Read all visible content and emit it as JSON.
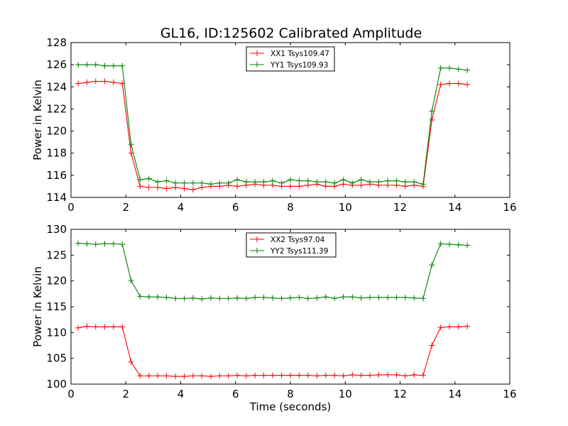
{
  "figure_title": "GL16, ID:125602 Calibrated Amplitude",
  "chart_data": [
    {
      "type": "line",
      "title": "GL16, ID:125602 Calibrated Amplitude",
      "xlabel": "",
      "ylabel": "Power in Kelvin",
      "xlim": [
        0,
        16
      ],
      "ylim": [
        114,
        128
      ],
      "xticks": [
        0,
        2,
        4,
        6,
        8,
        10,
        12,
        14,
        16
      ],
      "yticks": [
        114,
        116,
        118,
        120,
        122,
        124,
        126,
        128
      ],
      "grid": false,
      "legend_position": "top-center",
      "x": [
        0.26,
        0.58,
        0.9,
        1.23,
        1.55,
        1.87,
        2.19,
        2.52,
        2.84,
        3.16,
        3.48,
        3.81,
        4.13,
        4.45,
        4.77,
        5.1,
        5.42,
        5.74,
        6.06,
        6.39,
        6.71,
        7.03,
        7.35,
        7.68,
        8.0,
        8.32,
        8.64,
        8.97,
        9.29,
        9.61,
        9.93,
        10.26,
        10.58,
        10.9,
        11.22,
        11.55,
        11.87,
        12.19,
        12.51,
        12.84,
        13.16,
        13.48,
        13.8,
        14.13,
        14.45
      ],
      "series": [
        {
          "name": "XX1 Tsys109.47",
          "color": "#ff0000",
          "values": [
            124.3,
            124.4,
            124.5,
            124.5,
            124.4,
            124.3,
            118.0,
            115.0,
            114.9,
            114.9,
            114.8,
            114.9,
            114.8,
            114.7,
            114.9,
            115.0,
            115.0,
            115.1,
            115.0,
            115.1,
            115.2,
            115.1,
            115.1,
            115.0,
            115.0,
            115.0,
            115.1,
            115.2,
            115.0,
            115.0,
            115.2,
            115.1,
            115.1,
            115.2,
            115.1,
            115.1,
            115.1,
            115.0,
            115.1,
            115.0,
            121.0,
            124.2,
            124.3,
            124.3,
            124.2
          ]
        },
        {
          "name": "YY1 Tsys109.93",
          "color": "#008000",
          "values": [
            126.0,
            126.0,
            126.0,
            125.9,
            125.9,
            125.9,
            118.8,
            115.6,
            115.7,
            115.4,
            115.5,
            115.3,
            115.3,
            115.3,
            115.3,
            115.2,
            115.3,
            115.3,
            115.6,
            115.4,
            115.4,
            115.4,
            115.5,
            115.3,
            115.6,
            115.5,
            115.5,
            115.4,
            115.4,
            115.3,
            115.6,
            115.3,
            115.6,
            115.4,
            115.4,
            115.5,
            115.5,
            115.4,
            115.4,
            115.2,
            121.8,
            125.7,
            125.7,
            125.6,
            125.5
          ]
        }
      ]
    },
    {
      "type": "line",
      "title": "",
      "xlabel": "Time (seconds)",
      "ylabel": "Power in Kelvin",
      "xlim": [
        0,
        16
      ],
      "ylim": [
        100,
        130
      ],
      "xticks": [
        0,
        2,
        4,
        6,
        8,
        10,
        12,
        14,
        16
      ],
      "yticks": [
        100,
        105,
        110,
        115,
        120,
        125,
        130
      ],
      "grid": false,
      "legend_position": "top-center",
      "x": [
        0.26,
        0.58,
        0.9,
        1.23,
        1.55,
        1.87,
        2.19,
        2.52,
        2.84,
        3.16,
        3.48,
        3.81,
        4.13,
        4.45,
        4.77,
        5.1,
        5.42,
        5.74,
        6.06,
        6.39,
        6.71,
        7.03,
        7.35,
        7.68,
        8.0,
        8.32,
        8.64,
        8.97,
        9.29,
        9.61,
        9.93,
        10.26,
        10.58,
        10.9,
        11.22,
        11.55,
        11.87,
        12.19,
        12.51,
        12.84,
        13.16,
        13.48,
        13.8,
        14.13,
        14.45
      ],
      "series": [
        {
          "name": "XX2 Tsys97.04",
          "color": "#ff0000",
          "values": [
            110.9,
            111.2,
            111.1,
            111.1,
            111.1,
            111.1,
            104.3,
            101.6,
            101.6,
            101.6,
            101.6,
            101.5,
            101.5,
            101.6,
            101.6,
            101.5,
            101.6,
            101.6,
            101.7,
            101.6,
            101.7,
            101.7,
            101.7,
            101.7,
            101.7,
            101.7,
            101.7,
            101.6,
            101.7,
            101.7,
            101.6,
            101.8,
            101.7,
            101.7,
            101.8,
            101.8,
            101.8,
            101.6,
            101.8,
            101.7,
            107.5,
            111.0,
            111.1,
            111.1,
            111.2
          ]
        },
        {
          "name": "YY2 Tsys111.39",
          "color": "#008000",
          "values": [
            127.3,
            127.2,
            127.1,
            127.2,
            127.2,
            127.1,
            120.1,
            117.0,
            116.9,
            116.9,
            116.8,
            116.6,
            116.6,
            116.7,
            116.5,
            116.7,
            116.6,
            116.6,
            116.7,
            116.6,
            116.8,
            116.8,
            116.7,
            116.6,
            116.7,
            116.8,
            116.6,
            116.7,
            116.9,
            116.6,
            116.9,
            116.9,
            116.7,
            116.8,
            116.8,
            116.8,
            116.8,
            116.8,
            116.7,
            116.6,
            123.1,
            127.2,
            127.1,
            127.0,
            126.9
          ]
        }
      ]
    }
  ]
}
